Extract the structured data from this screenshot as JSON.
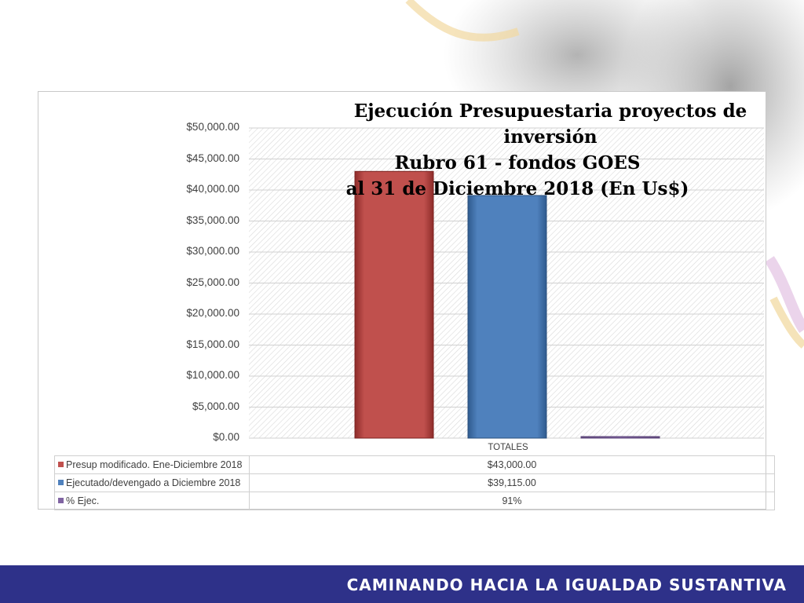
{
  "chart_data": {
    "type": "bar",
    "title_lines": [
      "Ejecución Presupuestaria proyectos de inversión",
      "Rubro 61 - fondos GOES",
      "al 31 de Diciembre 2018 (En Us$)"
    ],
    "categories": [
      "TOTALES"
    ],
    "series": [
      {
        "name": "Presup modificado. Ene-Diciembre 2018",
        "values": [
          43000
        ],
        "color": "#c0504d",
        "display": "$43,000.00"
      },
      {
        "name": "Ejecutado/devengado a Diciembre 2018",
        "values": [
          39115
        ],
        "color": "#4f81bd",
        "display": "$39,115.00"
      },
      {
        "name": "% Ejec.",
        "values": [
          0.91
        ],
        "color": "#8064a2",
        "display": "91%"
      }
    ],
    "ylim": [
      0,
      50000
    ],
    "yticks": [
      "$0.00",
      "$5,000.00",
      "$10,000.00",
      "$15,000.00",
      "$20,000.00",
      "$25,000.00",
      "$30,000.00",
      "$35,000.00",
      "$40,000.00",
      "$45,000.00",
      "$50,000.00"
    ],
    "grid": true,
    "legend": "data table"
  },
  "footer": {
    "slogan": "CAMINANDO HACIA LA IGUALDAD SUSTANTIVA"
  }
}
